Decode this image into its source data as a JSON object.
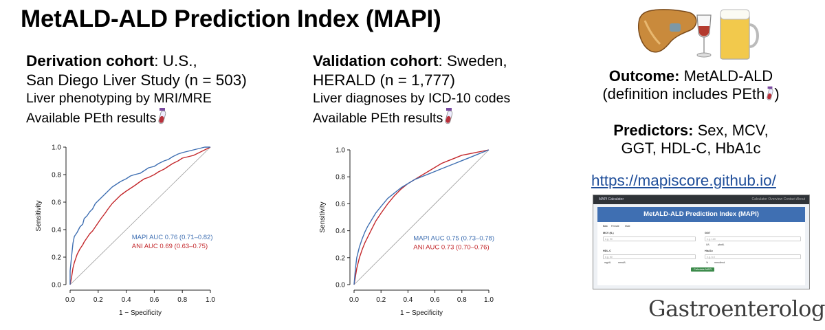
{
  "title": "MetALD-ALD Prediction Index (MAPI)",
  "derivation": {
    "label": "Derivation cohort",
    "line1_rest": ": U.S.,",
    "line2": "San Diego Liver Study (n = 503)",
    "line3": "Liver phenotyping by MRI/MRE",
    "line4": "Available PEth results"
  },
  "validation": {
    "label": "Validation cohort",
    "line1_rest": ": Sweden,",
    "line2": "HERALD (n = 1,777)",
    "line3": "Liver diagnoses by ICD-10 codes",
    "line4": "Available PEth results"
  },
  "outcome": {
    "label": "Outcome:",
    "value": " MetALD-ALD",
    "line2": "(definition includes PEth",
    "line2_end": ")"
  },
  "predictors": {
    "label": "Predictors:",
    "value": " Sex, MCV,",
    "line2": "GGT, HDL-C, HbA1c"
  },
  "url": "https://mapiscore.github.io/",
  "calculator": {
    "nav_title": "MAPI Calculator",
    "nav_links": "Calculator  Overview  Contact  About",
    "heading": "MetALD-ALD Prediction Index (MAPI)",
    "sex_label": "Sex",
    "sex_options": [
      "Female",
      "Male"
    ],
    "mcv_label": "MCV (fL)",
    "mcv_placeholder": "e.g. 90",
    "ggt_label": "GGT",
    "ggt_placeholder": "e.g. 120",
    "ggt_units": [
      "U/L",
      "µkat/L"
    ],
    "hdl_label": "HDL-C",
    "hdl_placeholder": "e.g. 50",
    "hdl_units": [
      "mg/dL",
      "mmol/L"
    ],
    "hba1c_label": "HbA1c",
    "hba1c_placeholder": "e.g. 6.0",
    "hba1c_units": [
      "%",
      "mmol/mol"
    ],
    "button": "Calculate MAPI"
  },
  "journal": "Gastroenterology",
  "colors": {
    "mapi": "#3f6fb2",
    "ani": "#c3272b",
    "url": "#1f4e9a",
    "diagonal": "#9a9a9a"
  },
  "chart_data": [
    {
      "type": "line",
      "title": "",
      "xlabel": "1 − Specificity",
      "ylabel": "Sensitivity",
      "xlim": [
        0,
        1
      ],
      "ylim": [
        0,
        1
      ],
      "ticks": [
        "0.0",
        "0.2",
        "0.4",
        "0.6",
        "0.8",
        "1.0"
      ],
      "series": [
        {
          "name": "MAPI AUC 0.76 (0.71–0.82)",
          "color": "#3f6fb2",
          "x": [
            0,
            0,
            0.01,
            0.02,
            0.03,
            0.05,
            0.07,
            0.09,
            0.1,
            0.12,
            0.14,
            0.16,
            0.18,
            0.2,
            0.22,
            0.25,
            0.28,
            0.3,
            0.33,
            0.36,
            0.4,
            0.43,
            0.46,
            0.5,
            0.53,
            0.56,
            0.6,
            0.63,
            0.67,
            0.7,
            0.73,
            0.77,
            0.8,
            0.84,
            0.88,
            0.92,
            0.96,
            1
          ],
          "y": [
            0,
            0.1,
            0.2,
            0.3,
            0.35,
            0.38,
            0.42,
            0.44,
            0.48,
            0.5,
            0.53,
            0.55,
            0.59,
            0.61,
            0.63,
            0.66,
            0.69,
            0.71,
            0.73,
            0.75,
            0.77,
            0.79,
            0.8,
            0.81,
            0.83,
            0.85,
            0.86,
            0.88,
            0.9,
            0.91,
            0.93,
            0.95,
            0.96,
            0.97,
            0.98,
            0.99,
            1.0,
            1.0
          ]
        },
        {
          "name": "ANI AUC 0.69 (0.63–0.75)",
          "color": "#c3272b",
          "x": [
            0,
            0.01,
            0.02,
            0.03,
            0.05,
            0.07,
            0.09,
            0.1,
            0.12,
            0.14,
            0.16,
            0.18,
            0.2,
            0.22,
            0.25,
            0.27,
            0.3,
            0.33,
            0.36,
            0.4,
            0.43,
            0.46,
            0.5,
            0.53,
            0.56,
            0.6,
            0.63,
            0.67,
            0.7,
            0.73,
            0.77,
            0.8,
            0.84,
            0.88,
            0.92,
            0.96,
            1
          ],
          "y": [
            0,
            0.05,
            0.12,
            0.16,
            0.22,
            0.26,
            0.29,
            0.31,
            0.34,
            0.37,
            0.39,
            0.42,
            0.45,
            0.48,
            0.52,
            0.55,
            0.59,
            0.62,
            0.65,
            0.68,
            0.7,
            0.72,
            0.75,
            0.77,
            0.78,
            0.8,
            0.82,
            0.84,
            0.86,
            0.88,
            0.9,
            0.92,
            0.93,
            0.94,
            0.96,
            0.98,
            1.0
          ]
        }
      ],
      "legend_position": "bottom-right"
    },
    {
      "type": "line",
      "title": "",
      "xlabel": "1 − Specificity",
      "ylabel": "Sensitivity",
      "xlim": [
        0,
        1
      ],
      "ylim": [
        0,
        1
      ],
      "ticks": [
        "0.0",
        "0.2",
        "0.4",
        "0.6",
        "0.8",
        "1.0"
      ],
      "series": [
        {
          "name": "MAPI AUC 0.75 (0.73–0.78)",
          "color": "#3f6fb2",
          "x": [
            0,
            0.01,
            0.02,
            0.04,
            0.06,
            0.08,
            0.1,
            0.13,
            0.16,
            0.2,
            0.25,
            0.3,
            0.35,
            0.4,
            0.45,
            0.5,
            0.55,
            0.6,
            0.65,
            0.7,
            0.75,
            0.8,
            0.85,
            0.9,
            0.95,
            1
          ],
          "y": [
            0,
            0.12,
            0.2,
            0.28,
            0.34,
            0.39,
            0.43,
            0.48,
            0.53,
            0.58,
            0.64,
            0.68,
            0.72,
            0.75,
            0.78,
            0.8,
            0.82,
            0.84,
            0.86,
            0.88,
            0.9,
            0.92,
            0.94,
            0.96,
            0.98,
            1.0
          ]
        },
        {
          "name": "ANI AUC 0.73 (0.70–0.76)",
          "color": "#c3272b",
          "x": [
            0,
            0.01,
            0.02,
            0.04,
            0.06,
            0.08,
            0.1,
            0.13,
            0.16,
            0.2,
            0.25,
            0.3,
            0.35,
            0.4,
            0.45,
            0.5,
            0.55,
            0.6,
            0.65,
            0.7,
            0.75,
            0.8,
            0.85,
            0.9,
            0.95,
            1
          ],
          "y": [
            0,
            0.06,
            0.12,
            0.2,
            0.26,
            0.31,
            0.35,
            0.41,
            0.47,
            0.53,
            0.6,
            0.66,
            0.71,
            0.75,
            0.78,
            0.81,
            0.84,
            0.87,
            0.9,
            0.92,
            0.94,
            0.96,
            0.97,
            0.98,
            0.99,
            1.0
          ]
        }
      ],
      "legend_position": "bottom-right"
    }
  ]
}
